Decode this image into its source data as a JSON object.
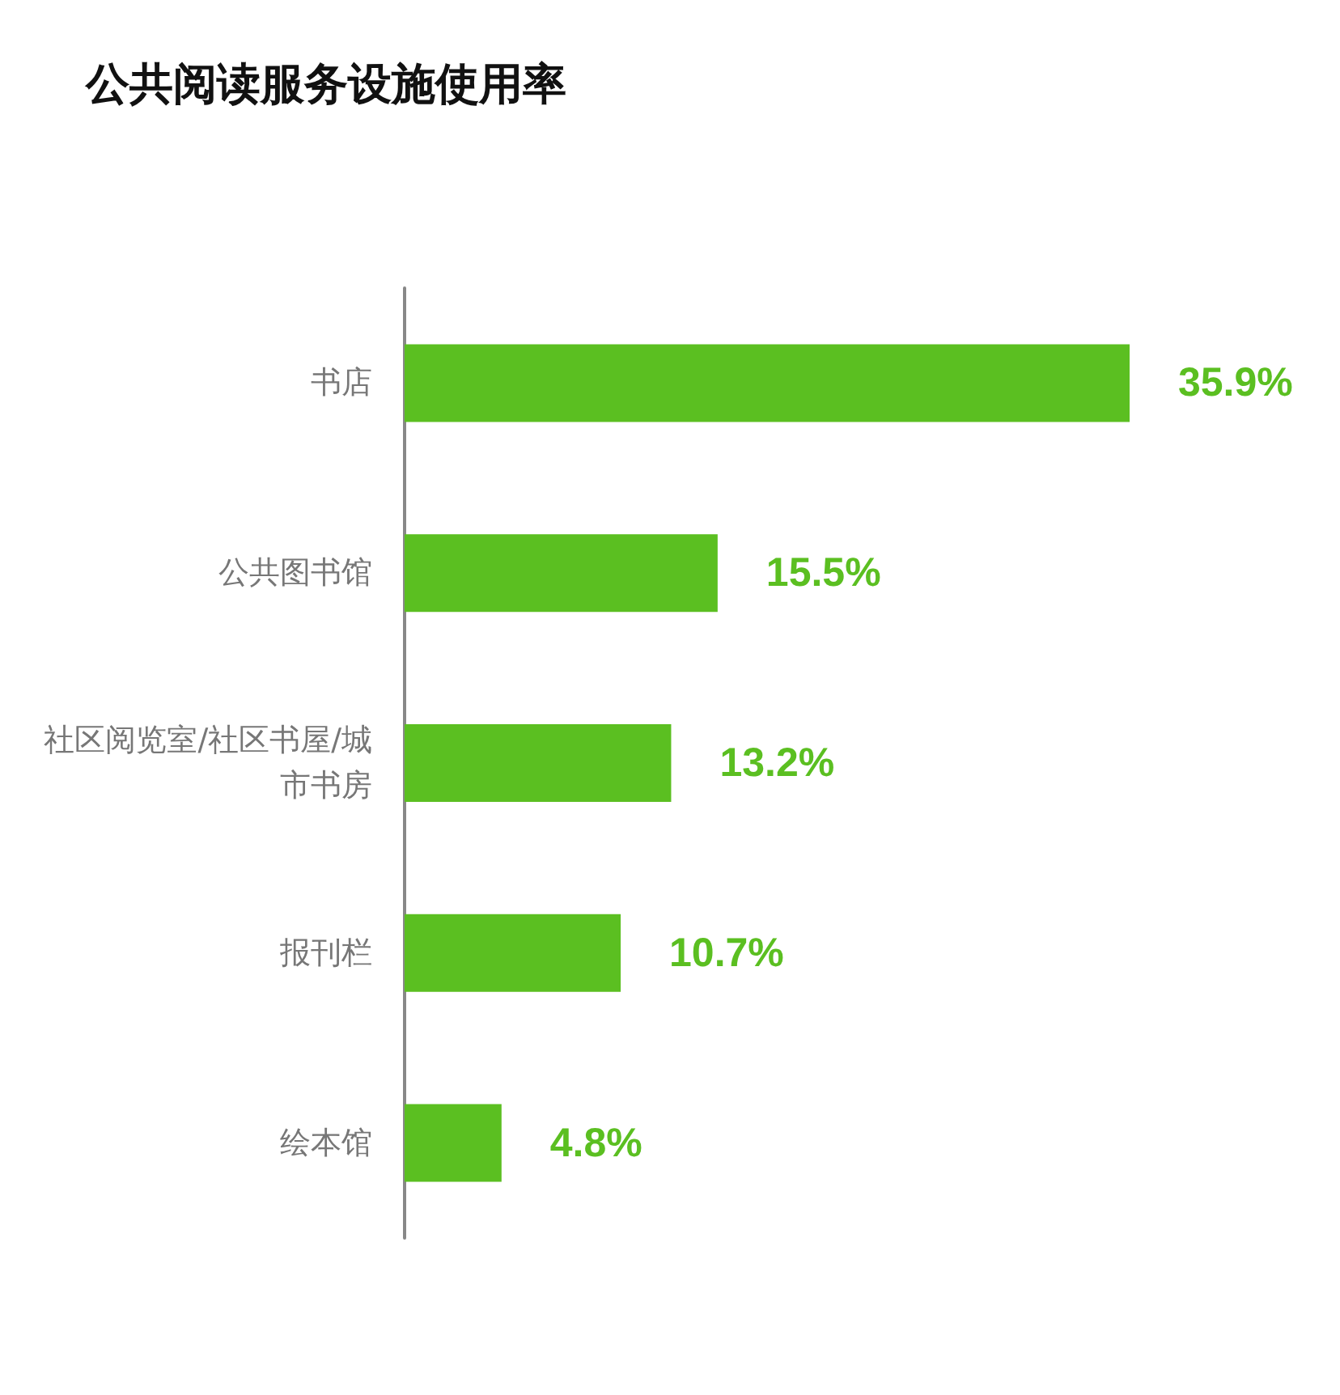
{
  "chart_data": {
    "type": "bar",
    "title": "公共阅读服务设施使用率",
    "orientation": "horizontal",
    "categories": [
      "书店",
      "公共图书馆",
      "社区阅览室/社区书屋/城市书房",
      "报刊栏",
      "绘本馆"
    ],
    "values": [
      35.9,
      15.5,
      13.2,
      10.7,
      4.8
    ],
    "value_labels": [
      "35.9%",
      "15.5%",
      "13.2%",
      "10.7%",
      "4.8%"
    ],
    "color": "#5bbf21"
  }
}
